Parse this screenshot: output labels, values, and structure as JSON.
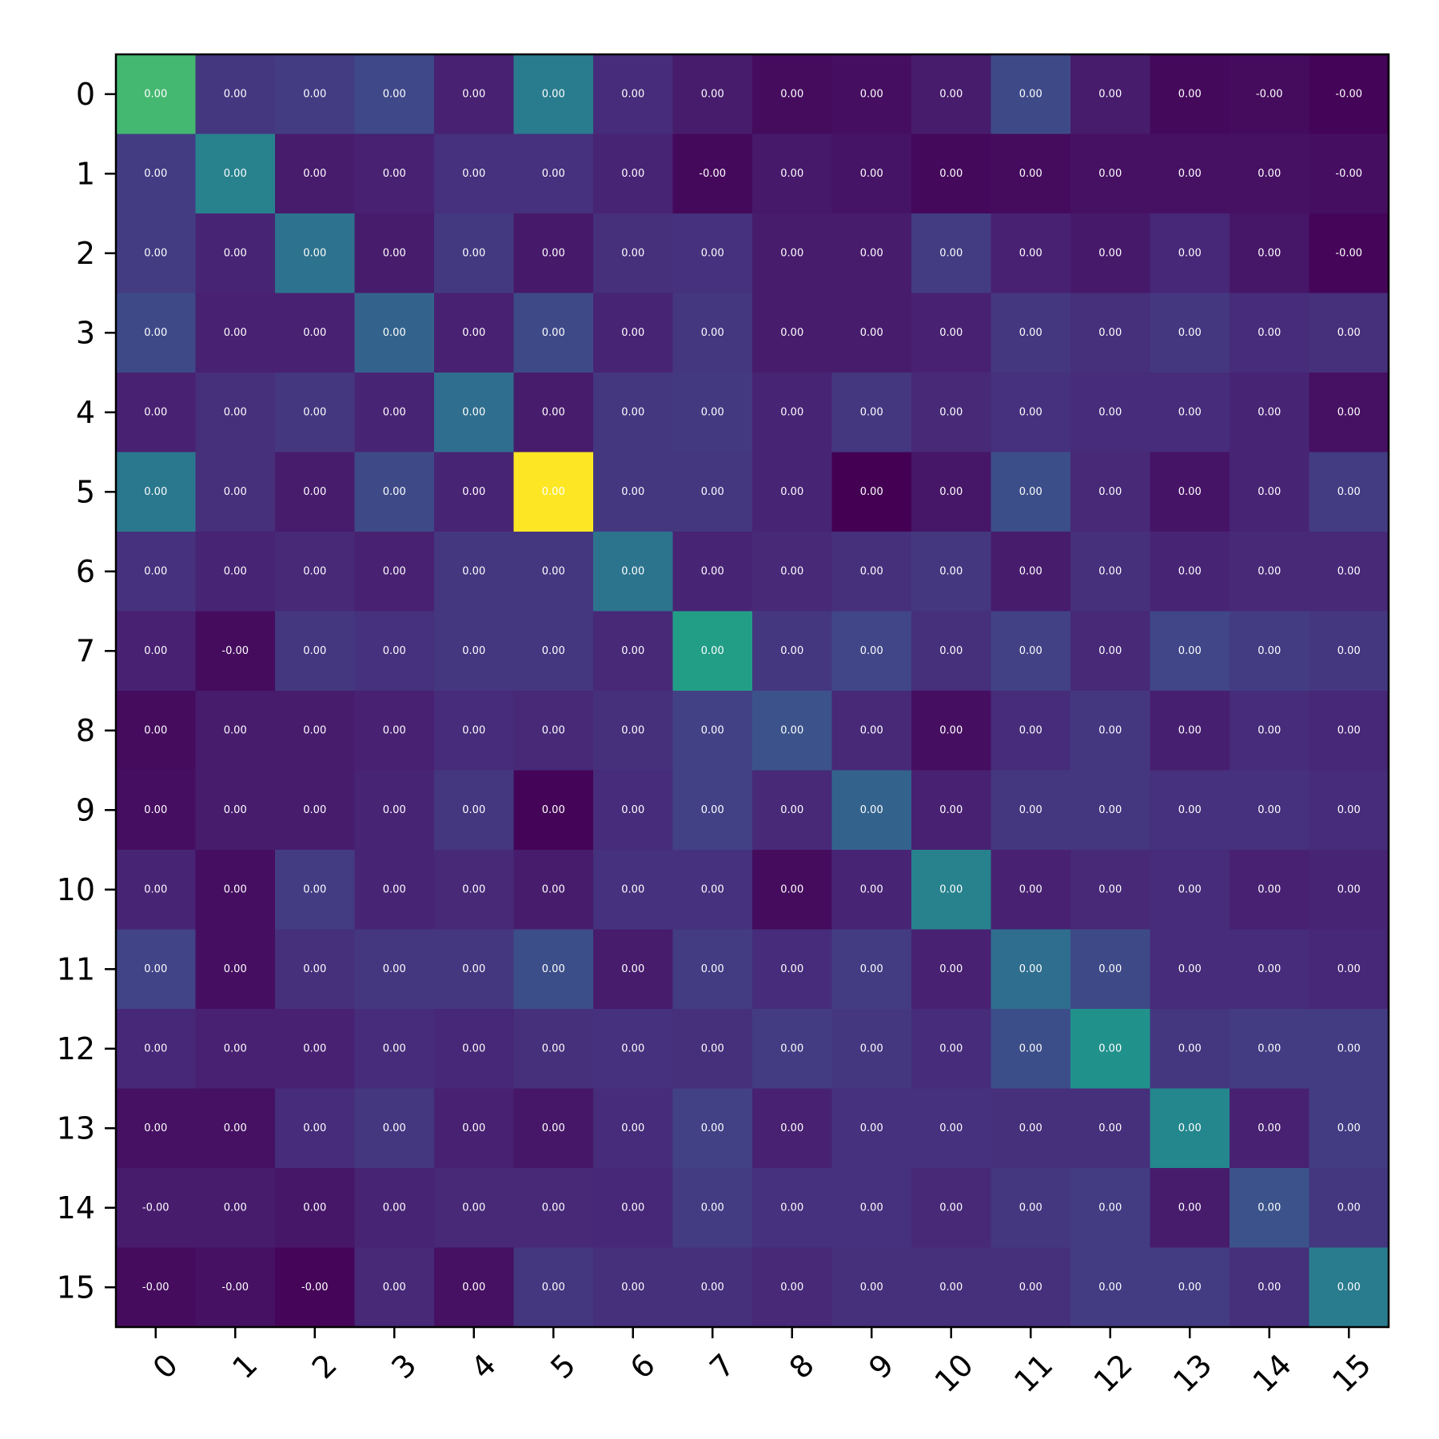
{
  "chart_data": {
    "type": "heatmap",
    "title": "",
    "xlabel": "",
    "ylabel": "",
    "colormap": "viridis",
    "x_ticks": [
      "0",
      "1",
      "2",
      "3",
      "4",
      "5",
      "6",
      "7",
      "8",
      "9",
      "10",
      "11",
      "12",
      "13",
      "14",
      "15"
    ],
    "y_ticks": [
      "0",
      "1",
      "2",
      "3",
      "4",
      "5",
      "6",
      "7",
      "8",
      "9",
      "10",
      "11",
      "12",
      "13",
      "14",
      "15"
    ],
    "intensity": [
      [
        0.8,
        0.2,
        0.22,
        0.27,
        0.12,
        0.52,
        0.16,
        0.1,
        0.04,
        0.05,
        0.1,
        0.28,
        0.1,
        0.03,
        0.04,
        0.01
      ],
      [
        0.22,
        0.55,
        0.1,
        0.12,
        0.18,
        0.18,
        0.13,
        0.03,
        0.09,
        0.07,
        0.03,
        0.04,
        0.06,
        0.06,
        0.06,
        0.05
      ],
      [
        0.22,
        0.13,
        0.47,
        0.1,
        0.21,
        0.09,
        0.17,
        0.18,
        0.1,
        0.1,
        0.22,
        0.12,
        0.09,
        0.14,
        0.08,
        0.02
      ],
      [
        0.28,
        0.12,
        0.12,
        0.4,
        0.12,
        0.28,
        0.13,
        0.2,
        0.1,
        0.1,
        0.12,
        0.2,
        0.17,
        0.2,
        0.16,
        0.17
      ],
      [
        0.12,
        0.17,
        0.2,
        0.13,
        0.45,
        0.1,
        0.2,
        0.21,
        0.13,
        0.2,
        0.15,
        0.18,
        0.16,
        0.16,
        0.13,
        0.06
      ],
      [
        0.5,
        0.17,
        0.1,
        0.28,
        0.13,
        1.0,
        0.2,
        0.2,
        0.13,
        0.0,
        0.08,
        0.3,
        0.15,
        0.07,
        0.13,
        0.22
      ],
      [
        0.18,
        0.13,
        0.15,
        0.12,
        0.2,
        0.2,
        0.48,
        0.13,
        0.15,
        0.17,
        0.2,
        0.1,
        0.17,
        0.13,
        0.15,
        0.15
      ],
      [
        0.12,
        0.04,
        0.2,
        0.18,
        0.2,
        0.2,
        0.15,
        0.7,
        0.2,
        0.26,
        0.17,
        0.24,
        0.15,
        0.26,
        0.22,
        0.2
      ],
      [
        0.04,
        0.1,
        0.1,
        0.12,
        0.16,
        0.15,
        0.17,
        0.24,
        0.32,
        0.15,
        0.05,
        0.16,
        0.2,
        0.11,
        0.16,
        0.14
      ],
      [
        0.05,
        0.1,
        0.1,
        0.13,
        0.2,
        0.01,
        0.16,
        0.24,
        0.15,
        0.4,
        0.12,
        0.2,
        0.2,
        0.18,
        0.18,
        0.16
      ],
      [
        0.13,
        0.05,
        0.22,
        0.13,
        0.15,
        0.1,
        0.18,
        0.18,
        0.04,
        0.13,
        0.55,
        0.12,
        0.15,
        0.16,
        0.12,
        0.13
      ],
      [
        0.25,
        0.05,
        0.17,
        0.2,
        0.2,
        0.3,
        0.1,
        0.22,
        0.16,
        0.22,
        0.12,
        0.45,
        0.28,
        0.16,
        0.16,
        0.14
      ],
      [
        0.14,
        0.12,
        0.12,
        0.16,
        0.14,
        0.17,
        0.18,
        0.17,
        0.22,
        0.2,
        0.16,
        0.3,
        0.63,
        0.2,
        0.22,
        0.22
      ],
      [
        0.06,
        0.06,
        0.16,
        0.2,
        0.12,
        0.08,
        0.16,
        0.24,
        0.12,
        0.18,
        0.18,
        0.17,
        0.17,
        0.58,
        0.12,
        0.22
      ],
      [
        0.1,
        0.1,
        0.08,
        0.13,
        0.15,
        0.15,
        0.14,
        0.22,
        0.18,
        0.18,
        0.15,
        0.2,
        0.22,
        0.1,
        0.32,
        0.2
      ],
      [
        0.04,
        0.06,
        0.02,
        0.15,
        0.06,
        0.2,
        0.17,
        0.17,
        0.15,
        0.17,
        0.17,
        0.17,
        0.22,
        0.22,
        0.17,
        0.52
      ]
    ],
    "cell_labels": [
      [
        "0.00",
        "0.00",
        "0.00",
        "0.00",
        "0.00",
        "0.00",
        "0.00",
        "0.00",
        "0.00",
        "0.00",
        "0.00",
        "0.00",
        "0.00",
        "0.00",
        "-0.00",
        "-0.00"
      ],
      [
        "0.00",
        "0.00",
        "0.00",
        "0.00",
        "0.00",
        "0.00",
        "0.00",
        "-0.00",
        "0.00",
        "0.00",
        "0.00",
        "0.00",
        "0.00",
        "0.00",
        "0.00",
        "-0.00"
      ],
      [
        "0.00",
        "0.00",
        "0.00",
        "0.00",
        "0.00",
        "0.00",
        "0.00",
        "0.00",
        "0.00",
        "0.00",
        "0.00",
        "0.00",
        "0.00",
        "0.00",
        "0.00",
        "-0.00"
      ],
      [
        "0.00",
        "0.00",
        "0.00",
        "0.00",
        "0.00",
        "0.00",
        "0.00",
        "0.00",
        "0.00",
        "0.00",
        "0.00",
        "0.00",
        "0.00",
        "0.00",
        "0.00",
        "0.00"
      ],
      [
        "0.00",
        "0.00",
        "0.00",
        "0.00",
        "0.00",
        "0.00",
        "0.00",
        "0.00",
        "0.00",
        "0.00",
        "0.00",
        "0.00",
        "0.00",
        "0.00",
        "0.00",
        "0.00"
      ],
      [
        "0.00",
        "0.00",
        "0.00",
        "0.00",
        "0.00",
        "0.00",
        "0.00",
        "0.00",
        "0.00",
        "0.00",
        "0.00",
        "0.00",
        "0.00",
        "0.00",
        "0.00",
        "0.00"
      ],
      [
        "0.00",
        "0.00",
        "0.00",
        "0.00",
        "0.00",
        "0.00",
        "0.00",
        "0.00",
        "0.00",
        "0.00",
        "0.00",
        "0.00",
        "0.00",
        "0.00",
        "0.00",
        "0.00"
      ],
      [
        "0.00",
        "-0.00",
        "0.00",
        "0.00",
        "0.00",
        "0.00",
        "0.00",
        "0.00",
        "0.00",
        "0.00",
        "0.00",
        "0.00",
        "0.00",
        "0.00",
        "0.00",
        "0.00"
      ],
      [
        "0.00",
        "0.00",
        "0.00",
        "0.00",
        "0.00",
        "0.00",
        "0.00",
        "0.00",
        "0.00",
        "0.00",
        "0.00",
        "0.00",
        "0.00",
        "0.00",
        "0.00",
        "0.00"
      ],
      [
        "0.00",
        "0.00",
        "0.00",
        "0.00",
        "0.00",
        "0.00",
        "0.00",
        "0.00",
        "0.00",
        "0.00",
        "0.00",
        "0.00",
        "0.00",
        "0.00",
        "0.00",
        "0.00"
      ],
      [
        "0.00",
        "0.00",
        "0.00",
        "0.00",
        "0.00",
        "0.00",
        "0.00",
        "0.00",
        "0.00",
        "0.00",
        "0.00",
        "0.00",
        "0.00",
        "0.00",
        "0.00",
        "0.00"
      ],
      [
        "0.00",
        "0.00",
        "0.00",
        "0.00",
        "0.00",
        "0.00",
        "0.00",
        "0.00",
        "0.00",
        "0.00",
        "0.00",
        "0.00",
        "0.00",
        "0.00",
        "0.00",
        "0.00"
      ],
      [
        "0.00",
        "0.00",
        "0.00",
        "0.00",
        "0.00",
        "0.00",
        "0.00",
        "0.00",
        "0.00",
        "0.00",
        "0.00",
        "0.00",
        "0.00",
        "0.00",
        "0.00",
        "0.00"
      ],
      [
        "0.00",
        "0.00",
        "0.00",
        "0.00",
        "0.00",
        "0.00",
        "0.00",
        "0.00",
        "0.00",
        "0.00",
        "0.00",
        "0.00",
        "0.00",
        "0.00",
        "0.00",
        "0.00"
      ],
      [
        "-0.00",
        "0.00",
        "0.00",
        "0.00",
        "0.00",
        "0.00",
        "0.00",
        "0.00",
        "0.00",
        "0.00",
        "0.00",
        "0.00",
        "0.00",
        "0.00",
        "0.00",
        "0.00"
      ],
      [
        "-0.00",
        "-0.00",
        "-0.00",
        "0.00",
        "0.00",
        "0.00",
        "0.00",
        "0.00",
        "0.00",
        "0.00",
        "0.00",
        "0.00",
        "0.00",
        "0.00",
        "0.00",
        "0.00"
      ]
    ],
    "grid": false,
    "colorbar": false
  }
}
